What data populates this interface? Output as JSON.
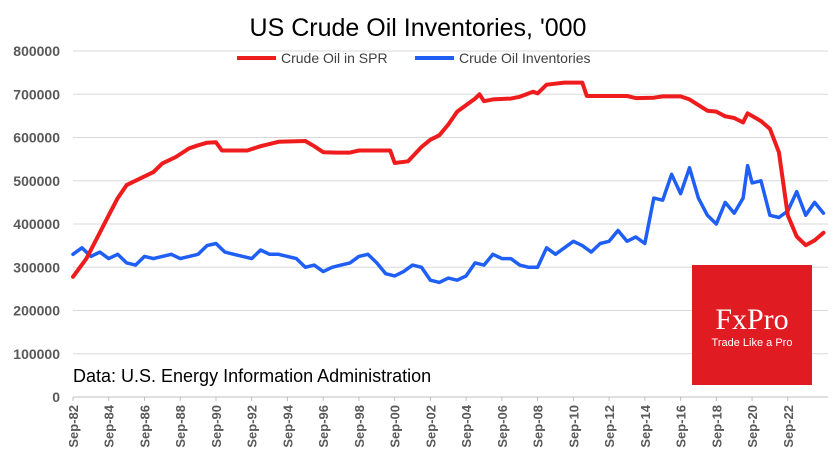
{
  "chart_data": {
    "type": "line",
    "title": "US Crude Oil Inventories, '000",
    "source_note": "Data: U.S. Energy Information Administration",
    "legend_position": "top-center",
    "grid": true,
    "ylim": [
      0,
      800000
    ],
    "y_ticks": [
      "800000",
      "700000",
      "600000",
      "500000",
      "400000",
      "300000",
      "200000",
      "100000",
      "0"
    ],
    "x_ticks": [
      "Sep-82",
      "Sep-84",
      "Sep-86",
      "Sep-88",
      "Sep-90",
      "Sep-92",
      "Sep-94",
      "Sep-96",
      "Sep-98",
      "Sep-00",
      "Sep-02",
      "Sep-04",
      "Sep-06",
      "Sep-08",
      "Sep-10",
      "Sep-12",
      "Sep-14",
      "Sep-16",
      "Sep-18",
      "Sep-20",
      "Sep-22"
    ],
    "series": [
      {
        "name": "Crude Oil in SPR",
        "color": "#ee1c1c",
        "points": [
          [
            "1982-09",
            278000
          ],
          [
            "1983-06",
            320000
          ],
          [
            "1984-03",
            380000
          ],
          [
            "1984-09",
            420000
          ],
          [
            "1985-03",
            460000
          ],
          [
            "1985-09",
            490000
          ],
          [
            "1986-06",
            505000
          ],
          [
            "1987-03",
            520000
          ],
          [
            "1987-09",
            540000
          ],
          [
            "1988-06",
            555000
          ],
          [
            "1989-03",
            575000
          ],
          [
            "1989-09",
            582000
          ],
          [
            "1990-03",
            588000
          ],
          [
            "1990-09",
            589000
          ],
          [
            "1991-01",
            570000
          ],
          [
            "1992-06",
            570000
          ],
          [
            "1993-03",
            580000
          ],
          [
            "1994-03",
            590000
          ],
          [
            "1995-09",
            592000
          ],
          [
            "1996-03",
            580000
          ],
          [
            "1996-09",
            566000
          ],
          [
            "1997-06",
            565000
          ],
          [
            "1998-03",
            565000
          ],
          [
            "1998-09",
            570000
          ],
          [
            "1999-03",
            570000
          ],
          [
            "2000-06",
            570000
          ],
          [
            "2000-09",
            541000
          ],
          [
            "2001-06",
            545000
          ],
          [
            "2002-03",
            578000
          ],
          [
            "2002-09",
            595000
          ],
          [
            "2003-03",
            605000
          ],
          [
            "2003-09",
            630000
          ],
          [
            "2004-03",
            660000
          ],
          [
            "2004-09",
            675000
          ],
          [
            "2005-03",
            690000
          ],
          [
            "2005-06",
            700000
          ],
          [
            "2005-09",
            684000
          ],
          [
            "2006-03",
            688000
          ],
          [
            "2007-03",
            690000
          ],
          [
            "2007-09",
            694000
          ],
          [
            "2008-06",
            706000
          ],
          [
            "2008-09",
            702000
          ],
          [
            "2009-03",
            722000
          ],
          [
            "2010-03",
            727000
          ],
          [
            "2011-03",
            727000
          ],
          [
            "2011-06",
            696000
          ],
          [
            "2012-09",
            696000
          ],
          [
            "2013-09",
            696000
          ],
          [
            "2014-03",
            691000
          ],
          [
            "2015-03",
            692000
          ],
          [
            "2015-09",
            695000
          ],
          [
            "2016-09",
            695000
          ],
          [
            "2017-03",
            688000
          ],
          [
            "2017-09",
            675000
          ],
          [
            "2018-03",
            662000
          ],
          [
            "2018-09",
            660000
          ],
          [
            "2019-03",
            649000
          ],
          [
            "2019-09",
            645000
          ],
          [
            "2020-03",
            635000
          ],
          [
            "2020-06",
            656000
          ],
          [
            "2021-03",
            638000
          ],
          [
            "2021-09",
            620000
          ],
          [
            "2022-03",
            566000
          ],
          [
            "2022-09",
            420000
          ],
          [
            "2023-03",
            371000
          ],
          [
            "2023-09",
            351000
          ],
          [
            "2024-03",
            362000
          ],
          [
            "2024-09",
            380000
          ]
        ]
      },
      {
        "name": "Crude Oil Inventories",
        "color": "#1f5ff5",
        "points": [
          [
            "1982-09",
            330000
          ],
          [
            "1983-03",
            345000
          ],
          [
            "1983-09",
            325000
          ],
          [
            "1984-03",
            335000
          ],
          [
            "1984-09",
            320000
          ],
          [
            "1985-03",
            330000
          ],
          [
            "1985-09",
            310000
          ],
          [
            "1986-03",
            305000
          ],
          [
            "1986-09",
            325000
          ],
          [
            "1987-03",
            320000
          ],
          [
            "1987-09",
            325000
          ],
          [
            "1988-03",
            330000
          ],
          [
            "1988-09",
            320000
          ],
          [
            "1989-03",
            325000
          ],
          [
            "1989-09",
            330000
          ],
          [
            "1990-03",
            350000
          ],
          [
            "1990-09",
            355000
          ],
          [
            "1991-03",
            335000
          ],
          [
            "1991-09",
            330000
          ],
          [
            "1992-03",
            325000
          ],
          [
            "1992-09",
            320000
          ],
          [
            "1993-03",
            340000
          ],
          [
            "1993-09",
            330000
          ],
          [
            "1994-03",
            330000
          ],
          [
            "1994-09",
            325000
          ],
          [
            "1995-03",
            320000
          ],
          [
            "1995-09",
            300000
          ],
          [
            "1996-03",
            305000
          ],
          [
            "1996-09",
            290000
          ],
          [
            "1997-03",
            300000
          ],
          [
            "1997-09",
            305000
          ],
          [
            "1998-03",
            310000
          ],
          [
            "1998-09",
            325000
          ],
          [
            "1999-03",
            330000
          ],
          [
            "1999-09",
            310000
          ],
          [
            "2000-03",
            285000
          ],
          [
            "2000-09",
            280000
          ],
          [
            "2001-03",
            290000
          ],
          [
            "2001-09",
            305000
          ],
          [
            "2002-03",
            300000
          ],
          [
            "2002-09",
            270000
          ],
          [
            "2003-03",
            265000
          ],
          [
            "2003-09",
            275000
          ],
          [
            "2004-03",
            270000
          ],
          [
            "2004-09",
            280000
          ],
          [
            "2005-03",
            310000
          ],
          [
            "2005-09",
            305000
          ],
          [
            "2006-03",
            330000
          ],
          [
            "2006-09",
            320000
          ],
          [
            "2007-03",
            320000
          ],
          [
            "2007-09",
            305000
          ],
          [
            "2008-03",
            300000
          ],
          [
            "2008-09",
            300000
          ],
          [
            "2009-03",
            345000
          ],
          [
            "2009-09",
            330000
          ],
          [
            "2010-03",
            345000
          ],
          [
            "2010-09",
            360000
          ],
          [
            "2011-03",
            350000
          ],
          [
            "2011-09",
            335000
          ],
          [
            "2012-03",
            355000
          ],
          [
            "2012-09",
            360000
          ],
          [
            "2013-03",
            385000
          ],
          [
            "2013-09",
            360000
          ],
          [
            "2014-03",
            370000
          ],
          [
            "2014-09",
            355000
          ],
          [
            "2015-03",
            460000
          ],
          [
            "2015-09",
            455000
          ],
          [
            "2016-03",
            515000
          ],
          [
            "2016-09",
            470000
          ],
          [
            "2017-03",
            530000
          ],
          [
            "2017-09",
            460000
          ],
          [
            "2018-03",
            420000
          ],
          [
            "2018-09",
            400000
          ],
          [
            "2019-03",
            450000
          ],
          [
            "2019-09",
            425000
          ],
          [
            "2020-03",
            460000
          ],
          [
            "2020-06",
            535000
          ],
          [
            "2020-09",
            495000
          ],
          [
            "2021-03",
            500000
          ],
          [
            "2021-09",
            420000
          ],
          [
            "2022-03",
            415000
          ],
          [
            "2022-09",
            430000
          ],
          [
            "2023-03",
            475000
          ],
          [
            "2023-09",
            420000
          ],
          [
            "2024-03",
            450000
          ],
          [
            "2024-09",
            425000
          ]
        ]
      }
    ]
  },
  "brand": {
    "name": "FxPro",
    "tagline": "Trade Like a Pro",
    "color": "#e11b22"
  }
}
